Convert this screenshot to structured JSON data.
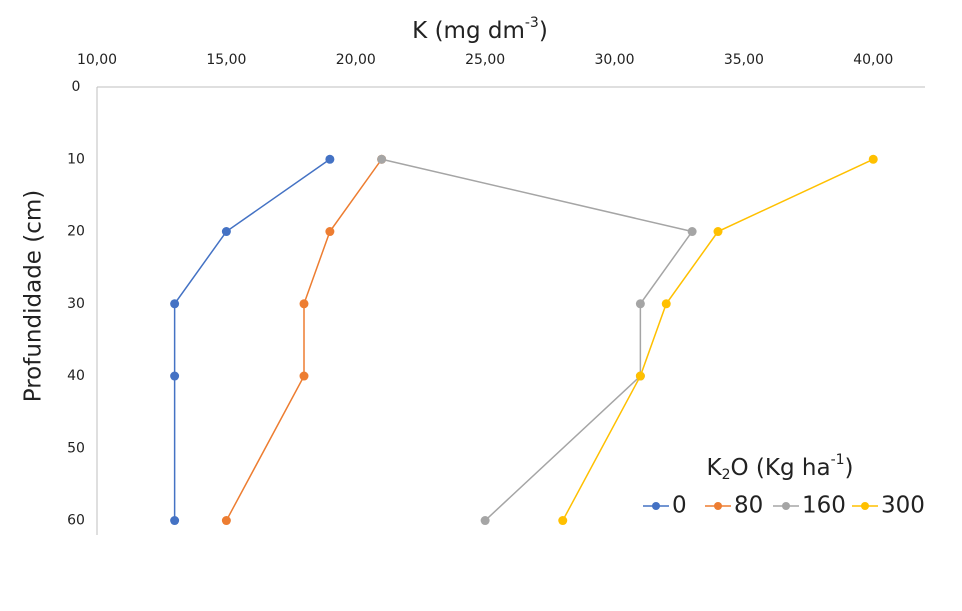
{
  "chart_data": {
    "type": "line",
    "x_label": {
      "text": "K (mg dm",
      "sup": "-3",
      "end": ")"
    },
    "y_label": "Profundidade (cm)",
    "y": [
      10,
      20,
      30,
      40,
      60
    ],
    "series": [
      {
        "name": "0",
        "color": "#4472c4",
        "values": [
          19,
          15,
          13,
          13,
          13
        ]
      },
      {
        "name": "80",
        "color": "#ed7d31",
        "values": [
          21,
          19,
          18,
          18,
          15
        ]
      },
      {
        "name": "160",
        "color": "#a5a5a5",
        "values": [
          21,
          33,
          31,
          31,
          25
        ]
      },
      {
        "name": "300",
        "color": "#ffc000",
        "values": [
          40,
          34,
          32,
          31,
          28
        ]
      }
    ],
    "legend_title": {
      "a": "K",
      "sub": "2",
      "b": "O (Kg ha",
      "sup": "-1",
      "end": ")"
    },
    "legend_position": "lower right",
    "xlim": [
      10,
      42
    ],
    "xticks": [
      {
        "value": 10,
        "label": "10,00"
      },
      {
        "value": 15,
        "label": "15,00"
      },
      {
        "value": 20,
        "label": "20,00"
      },
      {
        "value": 25,
        "label": "25,00"
      },
      {
        "value": 30,
        "label": "30,00"
      },
      {
        "value": 35,
        "label": "35,00"
      },
      {
        "value": 40,
        "label": "40,00"
      }
    ],
    "ylim": [
      0,
      62
    ],
    "yticks": [
      0,
      10,
      20,
      30,
      40,
      50,
      60
    ],
    "y_inverted": true,
    "x_axis_position": "top",
    "grid": false
  }
}
